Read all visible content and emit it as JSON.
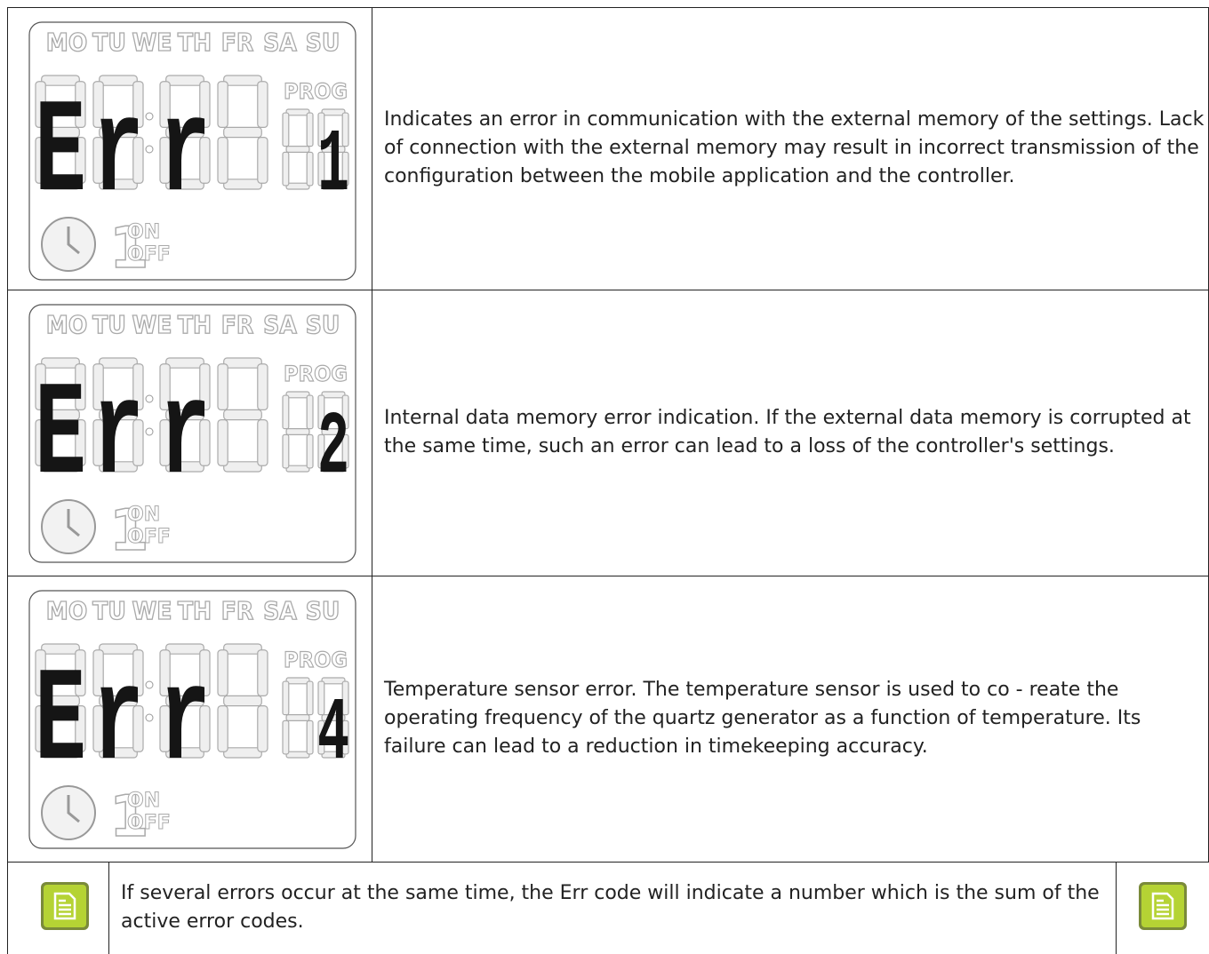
{
  "rows": [
    {
      "lcd": {
        "days": [
          "MO",
          "TU",
          "WE",
          "TH",
          "FR",
          "SA",
          "SU"
        ],
        "display": [
          "E",
          "r",
          "r"
        ],
        "prog": "PROG",
        "code": "1",
        "on": "ON",
        "off": "OFF"
      },
      "text": "Indicates an error in communication with the external memory of the settings. Lack of connection with the external memory may result in incorrect transmission of the configuration between the mobile application and the controller."
    },
    {
      "lcd": {
        "days": [
          "MO",
          "TU",
          "WE",
          "TH",
          "FR",
          "SA",
          "SU"
        ],
        "display": [
          "E",
          "r",
          "r"
        ],
        "prog": "PROG",
        "code": "2",
        "on": "ON",
        "off": "OFF"
      },
      "text": "Internal data memory error indication. If the external data memory is corrupted at the same time, such an error can lead to a loss of the controller's settings."
    },
    {
      "lcd": {
        "days": [
          "MO",
          "TU",
          "WE",
          "TH",
          "FR",
          "SA",
          "SU"
        ],
        "display": [
          "E",
          "r",
          "r"
        ],
        "prog": "PROG",
        "code": "4",
        "on": "ON",
        "off": "OFF"
      },
      "text": "Temperature sensor error. The temperature sensor is used to co - reate the operating frequency of the quartz generator as a function of temperature. Its failure can lead to a reduction in timekeeping accuracy."
    }
  ],
  "note": {
    "text": "If several errors occur at the same time, the Err code will indicate a number which is the sum of the active error codes."
  }
}
